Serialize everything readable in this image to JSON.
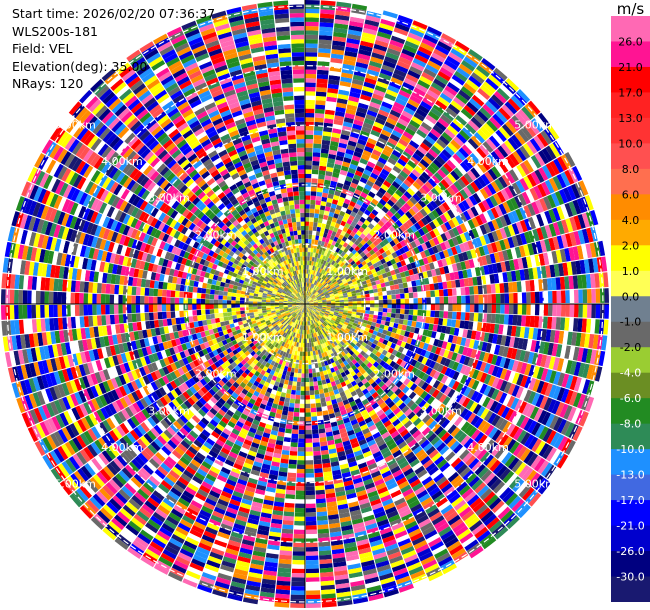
{
  "header": {
    "start_time": "Start time: 2026/02/20 07:36:37",
    "instrument": "WLS200s-181",
    "field": "Field: VEL",
    "elevation": "Elevation(deg): 35.00",
    "nrays": "NRays: 120"
  },
  "chart_data": {
    "type": "heatmap",
    "projection": "polar-ppi",
    "field": "VEL",
    "elevation_deg": 35.0,
    "nrays": 120,
    "range_ring_labels": [
      "1.00km",
      "2.00km",
      "3.00km",
      "4.00km",
      "5.00km"
    ],
    "colorbar": {
      "unit": "m/s",
      "ticks": [
        "26.0",
        "21.0",
        "17.0",
        "13.0",
        "10.0",
        "8.0",
        "6.0",
        "4.0",
        "2.0",
        "1.0",
        "0.0",
        "-1.0",
        "-2.0",
        "-4.0",
        "-6.0",
        "-8.0",
        "-10.0",
        "-13.0",
        "-17.0",
        "-21.0",
        "-26.0",
        "-30.0"
      ],
      "colors": [
        "#ff69b4",
        "#ff1493",
        "#ff0000",
        "#ff2222",
        "#ff3333",
        "#ff5050",
        "#ff6f4f",
        "#ff8c00",
        "#ffaa00",
        "#ffff00",
        "#ffff55",
        "#708090",
        "#696969",
        "#9acd32",
        "#6b8e23",
        "#228b22",
        "#2e8b57",
        "#1e90ff",
        "#4169e1",
        "#0000ff",
        "#0000cd",
        "#000080",
        "#191970"
      ]
    }
  }
}
